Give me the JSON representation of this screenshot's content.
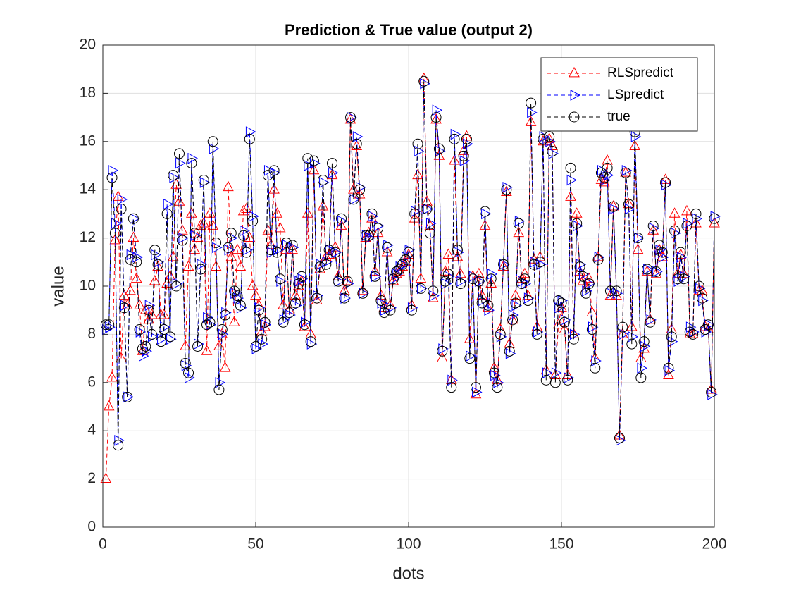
{
  "chart_data": {
    "type": "line",
    "title": "Prediction & True value (output 2)",
    "x_label": "dots",
    "y_label": "value",
    "xlim": [
      0,
      200
    ],
    "ylim": [
      0,
      20
    ],
    "xticks": [
      0,
      50,
      100,
      150,
      200
    ],
    "yticks": [
      0,
      2,
      4,
      6,
      8,
      10,
      12,
      14,
      16,
      18,
      20
    ],
    "grid": true,
    "legend_position": "upper right",
    "x": [
      1,
      2,
      3,
      4,
      5,
      6,
      7,
      8,
      9,
      10,
      11,
      12,
      13,
      14,
      15,
      16,
      17,
      18,
      19,
      20,
      21,
      22,
      23,
      24,
      25,
      26,
      27,
      28,
      29,
      30,
      31,
      32,
      33,
      34,
      35,
      36,
      37,
      38,
      39,
      40,
      41,
      42,
      43,
      44,
      45,
      46,
      47,
      48,
      49,
      50,
      51,
      52,
      53,
      54,
      55,
      56,
      57,
      58,
      59,
      60,
      61,
      62,
      63,
      64,
      65,
      66,
      67,
      68,
      69,
      70,
      71,
      72,
      73,
      74,
      75,
      76,
      77,
      78,
      79,
      80,
      81,
      82,
      83,
      84,
      85,
      86,
      87,
      88,
      89,
      90,
      91,
      92,
      93,
      94,
      95,
      96,
      97,
      98,
      99,
      100,
      101,
      102,
      103,
      104,
      105,
      106,
      107,
      108,
      109,
      110,
      111,
      112,
      113,
      114,
      115,
      116,
      117,
      118,
      119,
      120,
      121,
      122,
      123,
      124,
      125,
      126,
      127,
      128,
      129,
      130,
      131,
      132,
      133,
      134,
      135,
      136,
      137,
      138,
      139,
      140,
      141,
      142,
      143,
      144,
      145,
      146,
      147,
      148,
      149,
      150,
      151,
      152,
      153,
      154,
      155,
      156,
      157,
      158,
      159,
      160,
      161,
      162,
      163,
      164,
      165,
      166,
      167,
      168,
      169,
      170,
      171,
      172,
      173,
      174,
      175,
      176,
      177,
      178,
      179,
      180,
      181,
      182,
      183,
      184,
      185,
      186,
      187,
      188,
      189,
      190,
      191,
      192,
      193,
      194,
      195,
      196,
      197,
      198,
      199,
      200
    ],
    "series": [
      {
        "name": "RLSpredict",
        "color": "#ff0000",
        "marker": "triangle-up",
        "values": [
          2.0,
          5.0,
          6.2,
          11.9,
          13.7,
          7.0,
          9.6,
          9.2,
          9.8,
          12.0,
          10.3,
          9.2,
          7.3,
          9.0,
          8.6,
          8.8,
          10.2,
          10.8,
          8.8,
          8.8,
          10.1,
          10.4,
          11.2,
          14.2,
          13.5,
          12.3,
          7.5,
          10.8,
          13.0,
          11.5,
          12.0,
          12.5,
          12.6,
          7.3,
          13.0,
          12.5,
          10.8,
          7.5,
          8.0,
          6.6,
          14.1,
          11.2,
          8.5,
          11.5,
          10.8,
          13.1,
          13.2,
          12.0,
          10.0,
          9.6,
          9.2,
          8.1,
          8.3,
          12.3,
          11.7,
          14.0,
          13.0,
          12.4,
          9.2,
          11.5,
          9.0,
          11.5,
          9.6,
          10.0,
          10.2,
          8.3,
          13.0,
          8.0,
          14.8,
          9.4,
          10.7,
          13.3,
          11.2,
          11.3,
          14.6,
          11.6,
          10.4,
          12.5,
          9.8,
          10.2,
          16.9,
          14.0,
          15.8,
          13.8,
          9.8,
          12.0,
          12.2,
          12.8,
          10.6,
          12.2,
          9.6,
          9.1,
          11.4,
          9.2,
          10.2,
          10.5,
          10.6,
          10.8,
          11.0,
          11.3,
          9.2,
          12.8,
          14.6,
          10.3,
          18.6,
          13.5,
          12.5,
          9.5,
          16.9,
          15.4,
          7.0,
          10.6,
          11.3,
          6.1,
          15.2,
          11.2,
          10.5,
          15.6,
          16.2,
          7.8,
          10.4,
          5.5,
          10.5,
          9.6,
          12.5,
          9.1,
          10.1,
          6.6,
          6.1,
          8.2,
          10.8,
          13.9,
          7.6,
          8.6,
          9.6,
          12.2,
          10.3,
          10.5,
          9.6,
          16.8,
          11.1,
          8.3,
          11.2,
          16.0,
          6.5,
          16.1,
          15.8,
          6.3,
          8.4,
          9.1,
          8.2,
          6.3,
          13.7,
          8.0,
          13.0,
          10.6,
          10.2,
          9.9,
          10.3,
          8.9,
          7.0,
          11.2,
          14.4,
          14.3,
          15.2,
          9.6,
          13.3,
          9.6,
          3.8,
          8.0,
          14.7,
          13.4,
          8.3,
          15.8,
          11.5,
          7.0,
          7.4,
          10.6,
          8.6,
          12.3,
          10.5,
          11.5,
          11.2,
          14.4,
          6.3,
          8.2,
          13.0,
          10.5,
          11.3,
          10.5,
          13.1,
          8.0,
          8.0,
          12.6,
          9.8,
          9.8,
          8.3,
          8.2,
          5.7,
          12.6
        ]
      },
      {
        "name": "LSpredict",
        "color": "#0000ff",
        "marker": "triangle-right",
        "values": [
          8.2,
          8.3,
          14.8,
          12.6,
          3.6,
          13.6,
          9.2,
          5.4,
          11.3,
          12.8,
          11.2,
          8.1,
          7.1,
          7.3,
          9.2,
          7.9,
          11.3,
          11.0,
          7.8,
          8.3,
          13.4,
          7.8,
          14.5,
          10.1,
          15.1,
          12.0,
          6.7,
          6.2,
          15.3,
          12.1,
          7.6,
          10.9,
          14.3,
          8.7,
          8.4,
          15.7,
          11.6,
          6.0,
          8.0,
          8.9,
          11.5,
          12.0,
          9.7,
          9.5,
          9.1,
          12.3,
          11.5,
          16.4,
          12.9,
          7.4,
          9.1,
          7.6,
          8.4,
          14.8,
          11.4,
          14.7,
          11.5,
          10.2,
          8.6,
          11.7,
          8.8,
          11.6,
          9.2,
          10.2,
          10.3,
          8.5,
          15.0,
          7.6,
          15.1,
          9.6,
          10.9,
          14.3,
          11.0,
          11.5,
          14.7,
          11.4,
          10.2,
          12.7,
          9.5,
          10.1,
          17.0,
          13.6,
          16.2,
          14.1,
          9.7,
          12.1,
          12.0,
          12.9,
          10.4,
          12.5,
          9.3,
          9.0,
          11.7,
          9.1,
          10.3,
          10.5,
          10.8,
          10.9,
          11.2,
          11.5,
          9.1,
          13.1,
          15.6,
          9.9,
          18.4,
          13.2,
          12.6,
          9.6,
          17.3,
          15.6,
          7.4,
          10.1,
          10.4,
          6.1,
          16.3,
          11.4,
          10.2,
          15.2,
          15.9,
          7.1,
          10.4,
          5.6,
          10.2,
          9.4,
          13.0,
          9.0,
          10.5,
          6.3,
          6.0,
          7.9,
          10.9,
          14.1,
          7.2,
          8.8,
          9.2,
          12.7,
          10.2,
          10.1,
          9.5,
          17.2,
          11.0,
          8.1,
          10.9,
          16.2,
          6.4,
          16.0,
          15.5,
          6.4,
          9.1,
          9.4,
          8.6,
          6.2,
          14.4,
          8.0,
          12.5,
          10.9,
          10.5,
          9.8,
          10.1,
          8.3,
          6.9,
          11.2,
          14.8,
          14.4,
          14.6,
          9.7,
          13.2,
          9.7,
          3.6,
          8.0,
          14.8,
          13.2,
          7.9,
          16.2,
          12.0,
          6.6,
          7.5,
          10.7,
          8.6,
          12.4,
          10.6,
          11.5,
          11.2,
          14.2,
          6.5,
          7.7,
          12.2,
          10.2,
          11.2,
          10.4,
          12.6,
          8.3,
          8.1,
          12.8,
          9.9,
          9.4,
          8.1,
          8.4,
          5.5,
          12.9
        ]
      },
      {
        "name": "true",
        "color": "#000000",
        "marker": "circle",
        "values": [
          8.4,
          8.4,
          14.5,
          12.2,
          3.4,
          13.2,
          9.1,
          5.4,
          11.1,
          12.8,
          11.0,
          8.2,
          7.4,
          7.5,
          9.0,
          8.0,
          11.5,
          10.9,
          7.7,
          8.2,
          13.0,
          7.9,
          14.6,
          10.0,
          15.5,
          11.9,
          6.8,
          6.4,
          15.1,
          12.2,
          7.5,
          10.7,
          14.4,
          8.4,
          8.5,
          16.0,
          11.8,
          5.7,
          8.2,
          8.8,
          11.6,
          12.2,
          9.8,
          9.6,
          9.2,
          12.1,
          11.4,
          16.1,
          12.7,
          7.5,
          9.0,
          7.8,
          8.5,
          14.6,
          11.5,
          14.8,
          11.4,
          10.3,
          8.5,
          11.8,
          8.9,
          11.7,
          9.3,
          10.1,
          10.4,
          8.4,
          15.3,
          7.7,
          15.2,
          9.5,
          10.8,
          14.4,
          10.9,
          11.5,
          15.1,
          11.4,
          10.2,
          12.8,
          9.5,
          10.2,
          17.0,
          13.6,
          15.9,
          14.0,
          9.7,
          12.1,
          12.1,
          13.0,
          10.4,
          12.4,
          9.4,
          8.9,
          11.6,
          9.0,
          10.3,
          10.6,
          10.7,
          10.9,
          11.1,
          11.4,
          9.0,
          13.0,
          15.9,
          9.9,
          18.5,
          13.2,
          12.2,
          9.8,
          17.0,
          15.7,
          7.3,
          10.2,
          10.5,
          5.8,
          16.1,
          11.5,
          10.1,
          15.4,
          16.1,
          7.0,
          10.3,
          5.8,
          10.2,
          9.3,
          13.1,
          9.2,
          10.3,
          6.4,
          5.8,
          8.0,
          10.9,
          14.0,
          7.3,
          8.6,
          9.3,
          12.6,
          10.1,
          10.3,
          9.4,
          17.6,
          10.9,
          8.0,
          11.0,
          16.1,
          6.1,
          16.2,
          15.6,
          6.0,
          9.4,
          9.3,
          8.5,
          6.1,
          14.9,
          7.8,
          12.6,
          10.8,
          10.4,
          9.7,
          10.1,
          8.2,
          6.6,
          11.1,
          14.7,
          14.5,
          14.9,
          9.8,
          13.3,
          9.8,
          3.7,
          8.3,
          14.7,
          13.4,
          7.6,
          16.4,
          12.0,
          6.2,
          7.7,
          10.7,
          8.5,
          12.5,
          10.6,
          11.7,
          11.4,
          14.3,
          6.6,
          7.9,
          12.3,
          10.3,
          11.4,
          10.3,
          12.5,
          8.1,
          8.0,
          13.0,
          10.0,
          9.5,
          8.2,
          8.4,
          5.6,
          12.8
        ]
      }
    ]
  }
}
